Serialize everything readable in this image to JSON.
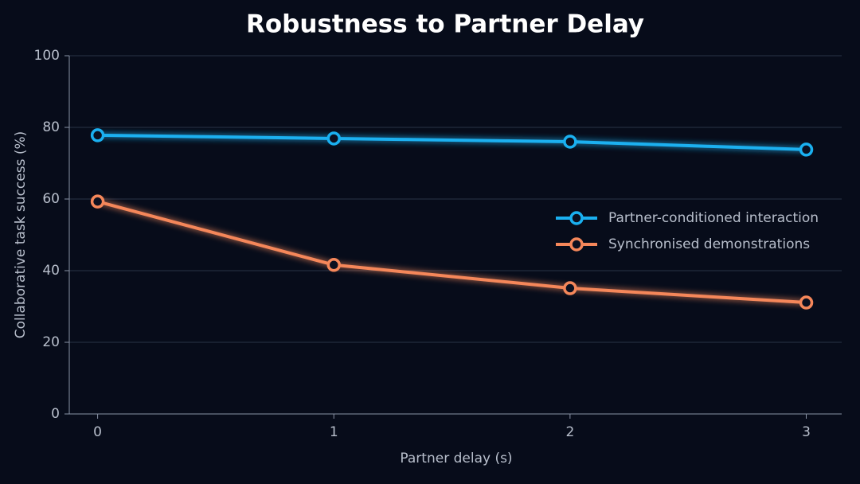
{
  "chart_data": {
    "type": "line",
    "title": "Robustness to Partner Delay",
    "x_label": "Partner delay (s)",
    "y_label": "Collaborative task success (%)",
    "x": [
      0,
      1,
      2,
      3
    ],
    "series": [
      {
        "name": "Partner-conditioned interaction",
        "color": "#1ab0f0",
        "values": [
          77.8,
          76.9,
          76.0,
          73.8
        ]
      },
      {
        "name": "Synchronised demonstrations",
        "color": "#f5875a",
        "values": [
          59.3,
          41.6,
          35.1,
          31.1
        ]
      }
    ],
    "xlim": [
      -0.12,
      3.15
    ],
    "xticks": [
      0,
      1,
      2,
      3
    ],
    "ylim": [
      0,
      100
    ],
    "yticks": [
      0,
      20,
      40,
      60,
      80,
      100
    ],
    "grid": true,
    "legend": "right"
  }
}
